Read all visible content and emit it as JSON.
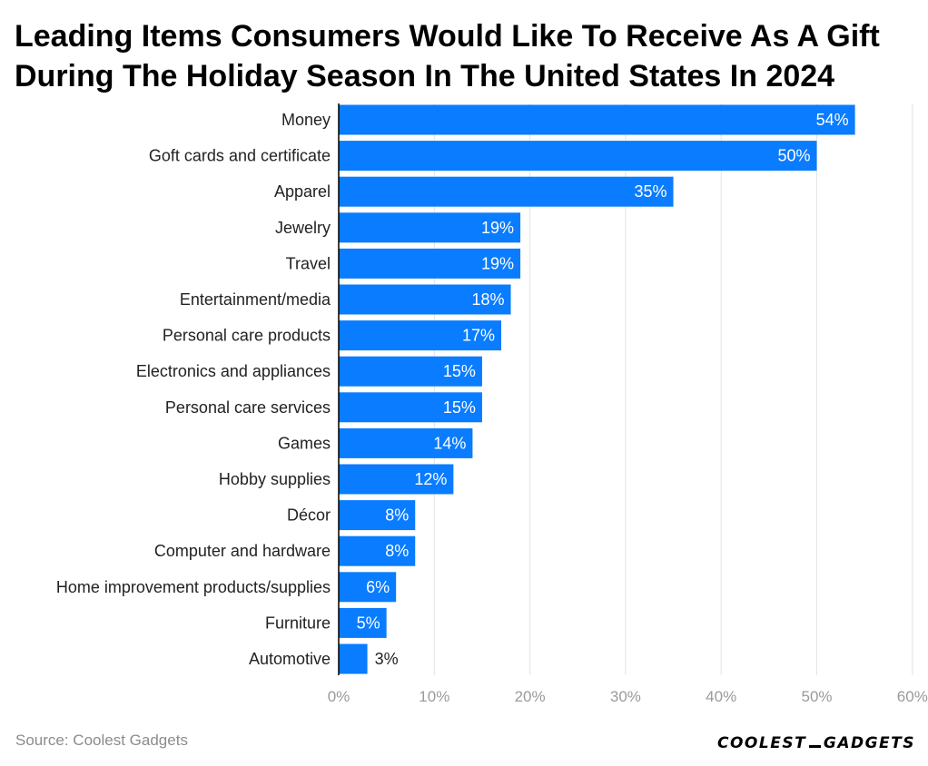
{
  "title": "Leading Items Consumers Would Like To Receive As A Gift During The Holiday Season In The United States In 2024",
  "source": "Source: Coolest Gadgets",
  "logo": {
    "left": "COOLEST",
    "right": "GADGETS"
  },
  "colors": {
    "bar": "#0a7cff",
    "grid": "#e3e3e3",
    "axis": "#000000",
    "tick": "#9a9a9a",
    "label": "#222222"
  },
  "chart_data": {
    "type": "bar",
    "orientation": "horizontal",
    "title": "Leading Items Consumers Would Like To Receive As A Gift During The Holiday Season In The United States In 2024",
    "categories": [
      "Money",
      "Goft cards and certificate",
      "Apparel",
      "Jewelry",
      "Travel",
      "Entertainment/media",
      "Personal care products",
      "Electronics and appliances",
      "Personal care services",
      "Games",
      "Hobby supplies",
      "Décor",
      "Computer and hardware",
      "Home improvement products/supplies",
      "Furniture",
      "Automotive"
    ],
    "values": [
      54,
      50,
      35,
      19,
      19,
      18,
      17,
      15,
      15,
      14,
      12,
      8,
      8,
      6,
      5,
      3
    ],
    "value_labels": [
      "54%",
      "50%",
      "35%",
      "19%",
      "19%",
      "18%",
      "17%",
      "15%",
      "15%",
      "14%",
      "12%",
      "8%",
      "8%",
      "6%",
      "5%",
      "3%"
    ],
    "xlim": [
      0,
      60
    ],
    "xticks": [
      "0%",
      "10%",
      "20%",
      "30%",
      "40%",
      "50%",
      "60%"
    ],
    "grid": true,
    "legend": "none"
  }
}
